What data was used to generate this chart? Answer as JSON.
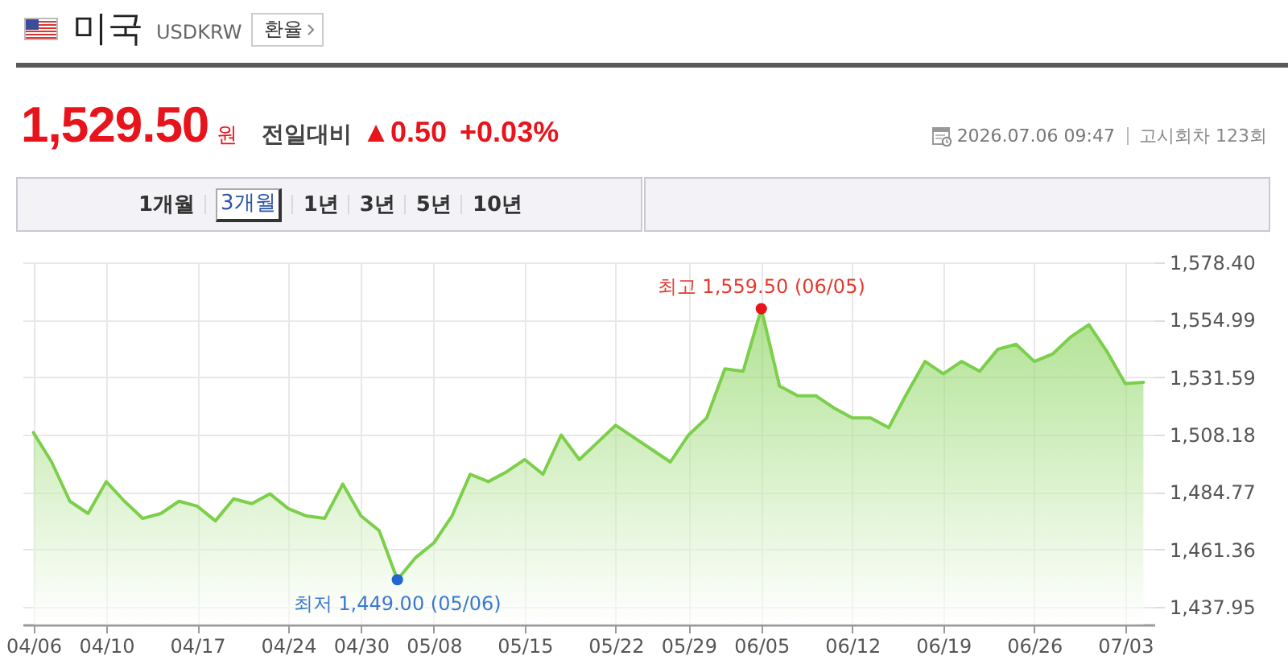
{
  "chart_data": {
    "type": "area",
    "title": "미국",
    "subtitle": "USDKRW",
    "categories": [
      "04/06",
      null,
      null,
      null,
      "04/10",
      null,
      null,
      null,
      null,
      "04/17",
      null,
      null,
      null,
      null,
      "04/24",
      null,
      null,
      null,
      "04/30",
      null,
      null,
      null,
      "05/08",
      null,
      null,
      null,
      null,
      "05/15",
      null,
      null,
      null,
      null,
      "05/22",
      null,
      null,
      null,
      "05/29",
      null,
      null,
      null,
      "06/05",
      null,
      null,
      null,
      null,
      "06/12",
      null,
      null,
      null,
      null,
      "06/19",
      null,
      null,
      null,
      null,
      "06/26",
      null,
      null,
      null,
      null,
      "07/03",
      null
    ],
    "values": [
      1509,
      1497,
      1481,
      1476,
      1489,
      1481,
      1474,
      1476,
      1481,
      1479,
      1473,
      1482,
      1480,
      1484,
      1478,
      1475,
      1474,
      1488,
      1475,
      1469,
      1449.0,
      1458,
      1464,
      1475,
      1492,
      1489,
      1493,
      1498,
      1492,
      1508,
      1498,
      1505,
      1512,
      1507,
      1502,
      1497,
      1508,
      1515,
      1535,
      1534,
      1559.5,
      1528,
      1524,
      1524,
      1519,
      1515,
      1515,
      1511,
      1525,
      1538,
      1533,
      1538,
      1534,
      1543,
      1545,
      1538,
      1541,
      1548,
      1553,
      1542,
      1529,
      1529.5
    ],
    "color": "#7ccf4a",
    "ylim": [
      1430.7,
      1578.4
    ],
    "yticks": [
      {
        "value": 1437.95,
        "label": "1,437.95"
      },
      {
        "value": 1461.36,
        "label": "1,461.36"
      },
      {
        "value": 1484.77,
        "label": "1,484.77"
      },
      {
        "value": 1508.18,
        "label": "1,508.18"
      },
      {
        "value": 1531.59,
        "label": "1,531.59"
      },
      {
        "value": 1554.99,
        "label": "1,554.99"
      },
      {
        "value": 1578.4,
        "label": "1,578.40"
      }
    ],
    "grid": true,
    "annotations": [
      "환율",
      "1,529.50",
      "원",
      "전일대비",
      "▲0.50",
      "+0.03%",
      "2026.07.06 09:47",
      "고시회차 123회",
      "1개월",
      "3개월",
      "1년",
      "3년",
      "5년",
      "10년",
      {
        "text": "최고 1,559.50 (06/05)",
        "y": 1559.5
      },
      {
        "text": "최저 1,449.00 (05/06)",
        "y": 1449.0
      }
    ]
  }
}
